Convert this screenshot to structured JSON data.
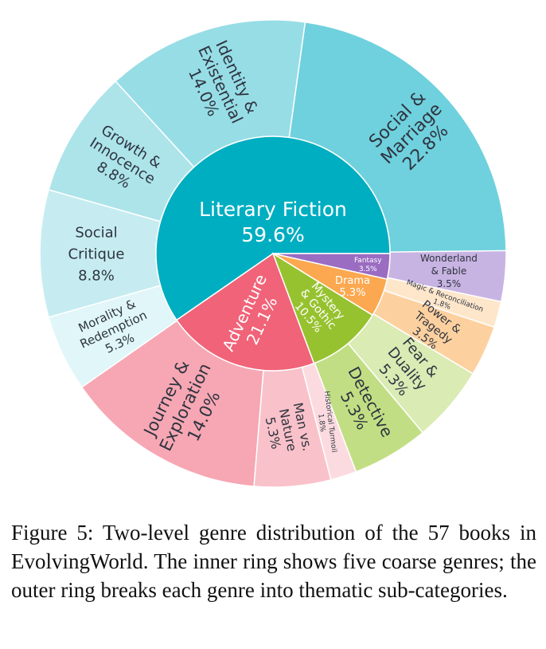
{
  "chart_data": {
    "type": "sunburst",
    "inner": [
      {
        "name": "Literary Fiction",
        "value": 59.6,
        "color": "#00aec1",
        "text_color": "#ffffff"
      },
      {
        "name": "Adventure",
        "value": 21.1,
        "color": "#f06378",
        "text_color": "#ffffff"
      },
      {
        "name": "Mystery & Gothic",
        "value": 10.5,
        "color": "#97c230",
        "text_color": "#ffffff"
      },
      {
        "name": "Drama",
        "value": 5.3,
        "color": "#fba850",
        "text_color": "#ffffff"
      },
      {
        "name": "Fantasy",
        "value": 3.5,
        "color": "#9a6cc2",
        "text_color": "#ffffff"
      }
    ],
    "outer": [
      {
        "name": "Social & Marriage",
        "value": 22.8,
        "parent": "Literary Fiction",
        "color": "#6fd1dd"
      },
      {
        "name": "Identity & Existential",
        "value": 14.0,
        "parent": "Literary Fiction",
        "color": "#97dde6"
      },
      {
        "name": "Growth & Innocence",
        "value": 8.8,
        "parent": "Literary Fiction",
        "color": "#ace4ea"
      },
      {
        "name": "Social Critique",
        "value": 8.8,
        "parent": "Literary Fiction",
        "color": "#c6ecf1"
      },
      {
        "name": "Morality & Redemption",
        "value": 5.3,
        "parent": "Literary Fiction",
        "color": "#e0f6f8"
      },
      {
        "name": "Journey & Exploration",
        "value": 14.0,
        "parent": "Adventure",
        "color": "#f6a7b3"
      },
      {
        "name": "Man vs. Nature",
        "value": 5.3,
        "parent": "Adventure",
        "color": "#f9c1c9"
      },
      {
        "name": "Historical Turmoil",
        "value": 1.8,
        "parent": "Adventure",
        "color": "#fcdbe0"
      },
      {
        "name": "Detective",
        "value": 5.3,
        "parent": "Mystery & Gothic",
        "color": "#c2de84"
      },
      {
        "name": "Fear & Duality",
        "value": 5.3,
        "parent": "Mystery & Gothic",
        "color": "#daebb4"
      },
      {
        "name": "Power & Tragedy",
        "value": 3.5,
        "parent": "Drama",
        "color": "#fdd19f"
      },
      {
        "name": "Magic & Reconciliation",
        "value": 1.8,
        "parent": "Drama",
        "color": "#fee6cb"
      },
      {
        "name": "Wonderland & Fable",
        "value": 3.5,
        "parent": "Fantasy",
        "color": "#c8b4e2"
      }
    ],
    "inner_labels": [
      {
        "lines": [
          "Literary Fiction",
          "59.6%"
        ]
      },
      {
        "lines": [
          "Adventure",
          "21.1%"
        ]
      },
      {
        "lines": [
          "Mystery",
          "& Gothic",
          "10.5%"
        ]
      },
      {
        "lines": [
          "Drama",
          "5.3%"
        ]
      },
      {
        "lines": [
          "Fantasy",
          "3.5%"
        ]
      }
    ],
    "outer_labels": [
      {
        "lines": [
          "Social &",
          "Marriage",
          "22.8%"
        ]
      },
      {
        "lines": [
          "Identity &",
          "Existential",
          "14.0%"
        ]
      },
      {
        "lines": [
          "Growth &",
          "Innocence",
          "8.8%"
        ]
      },
      {
        "lines": [
          "Social",
          "Critique",
          "8.8%"
        ]
      },
      {
        "lines": [
          "Morality &",
          "Redemption",
          "5.3%"
        ]
      },
      {
        "lines": [
          "Journey &",
          "Exploration",
          "14.0%"
        ]
      },
      {
        "lines": [
          "Man vs.",
          "Nature",
          "5.3%"
        ]
      },
      {
        "lines": [
          "Historical Turmoil",
          "1.8%"
        ]
      },
      {
        "lines": [
          "Detective",
          "5.3%"
        ]
      },
      {
        "lines": [
          "Fear &",
          "Duality",
          "5.3%"
        ]
      },
      {
        "lines": [
          "Power &",
          "Tragedy",
          "3.5%"
        ]
      },
      {
        "lines": [
          "Magic & Reconciliation",
          "1.8%"
        ]
      },
      {
        "lines": [
          "Wonderland",
          "& Fable",
          "3.5%"
        ]
      }
    ],
    "start_direction": "3 o'clock",
    "direction": "counterclockwise",
    "legend": "none"
  },
  "caption": "Figure 5: Two-level genre distribution of the 57 books in EvolvingWorld. The inner ring shows five coarse genres; the outer ring breaks each genre into thematic sub-categories."
}
